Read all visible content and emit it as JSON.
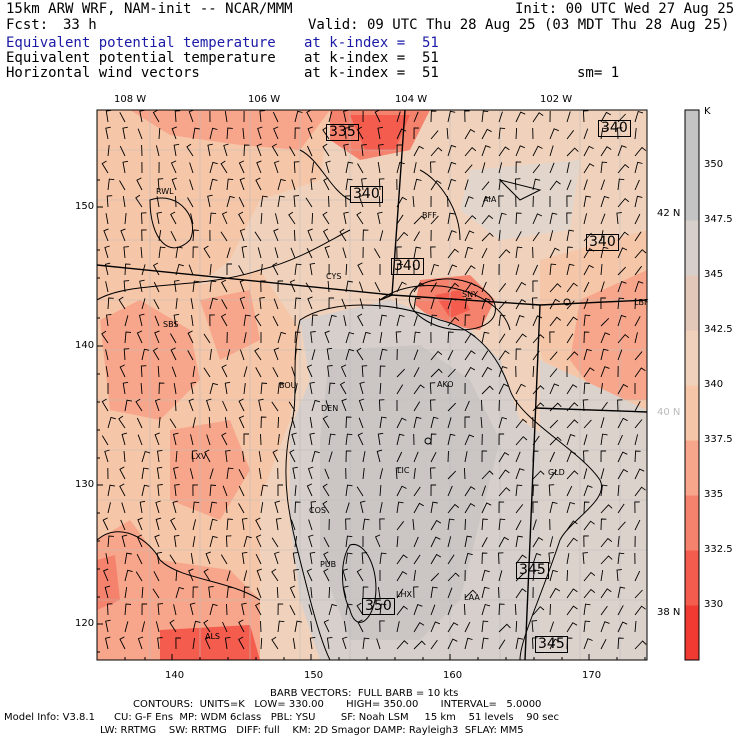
{
  "header": {
    "model": "15km ARW WRF, NAM-init -- NCAR/MMM",
    "init": "Init: 00 UTC Wed 27 Aug 25",
    "fcst_label": "Fcst:",
    "fcst_value": "33 h",
    "valid": "Valid: 09 UTC Thu 28 Aug 25 (03 MDT Thu 28 Aug 25)",
    "fields": [
      {
        "name": "Equivalent potential temperature",
        "level": "at k-index =  51"
      },
      {
        "name": "Equivalent potential temperature",
        "level": "at k-index =  51"
      },
      {
        "name": "Horizontal wind vectors",
        "level": "at k-index =  51"
      }
    ],
    "smooth": "sm= 1"
  },
  "axes": {
    "top_lon": [
      "108 W",
      "106 W",
      "104 W",
      "102 W"
    ],
    "right_lat": [
      "42 N",
      "40 N",
      "38 N"
    ],
    "left_y": [
      "150",
      "140",
      "130",
      "120"
    ],
    "bottom_x": [
      "140",
      "150",
      "160",
      "170"
    ]
  },
  "colorbar": {
    "unit": "K",
    "labels": [
      "350",
      "347.5",
      "345",
      "342.5",
      "340",
      "337.5",
      "335",
      "332.5",
      "330"
    ],
    "colors": [
      "#c4c4c4",
      "#d6cfcb",
      "#e2c8b8",
      "#f0d2bc",
      "#f6c6a8",
      "#f7a68b",
      "#f4826d",
      "#f45c4e",
      "#f03a32"
    ]
  },
  "stations": [
    "RWL",
    "BFF",
    "AIA",
    "CYS",
    "SNY",
    "SBS",
    "LBF",
    "BOU",
    "AKO",
    "DEN",
    "LXV",
    "LIC",
    "GLD",
    "COS",
    "PUB",
    "LHX",
    "LAA",
    "ALS"
  ],
  "contour_labels": [
    "335",
    "340",
    "340",
    "340",
    "340",
    "345",
    "350",
    "345"
  ],
  "footer": {
    "line1": "BARB VECTORS:  FULL BARB = 10 kts",
    "line2": "CONTOURS:  UNITS=K   LOW= 330.00       HIGH= 350.00       INTERVAL=   5.0000",
    "line3": "Model Info: V3.8.1      CU: G-F Ens  MP: WDM 6class   PBL: YSU        SF: Noah LSM     15 km    51 levels    90 sec",
    "line4": "LW: RRTMG    SW: RRTMG   DIFF: full    KM: 2D Smagor DAMP: Rayleigh3  SFLAY: MM5"
  }
}
